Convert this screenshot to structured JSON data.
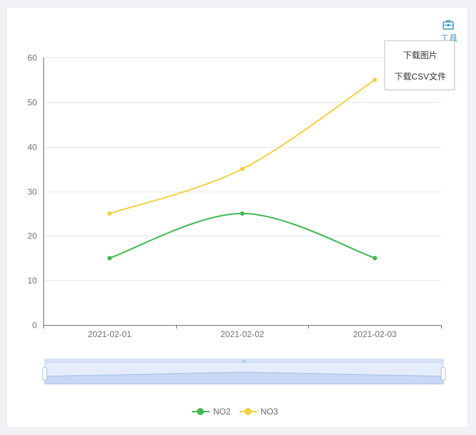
{
  "toolbox": {
    "label": "工具",
    "icon": "toolbox-icon",
    "color": "#3e98c5",
    "menu": [
      {
        "label": "下载图片"
      },
      {
        "label": "下载CSV文件"
      }
    ]
  },
  "chart_data": {
    "type": "line",
    "smooth": true,
    "categories": [
      "2021-02-01",
      "2021-02-02",
      "2021-02-03"
    ],
    "ylim": [
      0,
      60
    ],
    "yticks": [
      0,
      10,
      20,
      30,
      40,
      50,
      60
    ],
    "grid": true,
    "legend_position": "bottom-center",
    "series": [
      {
        "name": "NO2",
        "values": [
          15,
          25,
          15
        ],
        "color": "#3fb950"
      },
      {
        "name": "NO3",
        "values": [
          25,
          35,
          55
        ],
        "color": "#f4d03f"
      }
    ],
    "data_zoom": {
      "start": 0,
      "end": 100
    }
  }
}
